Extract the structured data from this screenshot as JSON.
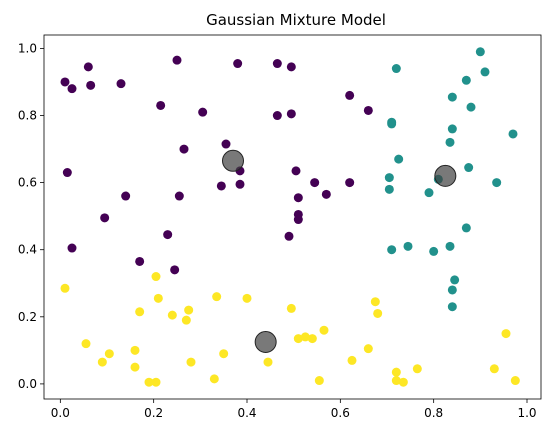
{
  "chart_data": {
    "type": "scatter",
    "title": "Gaussian Mixture Model",
    "xlabel": "",
    "ylabel": "",
    "xlim": [
      -0.035,
      1.03
    ],
    "ylim": [
      -0.045,
      1.04
    ],
    "xticks": [
      "0.0",
      "0.2",
      "0.4",
      "0.6",
      "0.8",
      "1.0"
    ],
    "yticks": [
      "0.0",
      "0.2",
      "0.4",
      "0.6",
      "0.8",
      "1.0"
    ],
    "grid": false,
    "legend": "none",
    "colors": {
      "cluster_purple": "#440154",
      "cluster_teal": "#21918c",
      "cluster_yellow": "#fde725",
      "centers": "#404040"
    },
    "series": [
      {
        "color_key": "cluster_purple",
        "points": [
          [
            0.01,
            0.9
          ],
          [
            0.025,
            0.88
          ],
          [
            0.06,
            0.945
          ],
          [
            0.065,
            0.89
          ],
          [
            0.13,
            0.895
          ],
          [
            0.25,
            0.965
          ],
          [
            0.38,
            0.955
          ],
          [
            0.465,
            0.955
          ],
          [
            0.495,
            0.945
          ],
          [
            0.215,
            0.83
          ],
          [
            0.305,
            0.81
          ],
          [
            0.465,
            0.8
          ],
          [
            0.495,
            0.805
          ],
          [
            0.62,
            0.86
          ],
          [
            0.66,
            0.815
          ],
          [
            0.265,
            0.7
          ],
          [
            0.355,
            0.715
          ],
          [
            0.385,
            0.635
          ],
          [
            0.345,
            0.59
          ],
          [
            0.385,
            0.595
          ],
          [
            0.015,
            0.63
          ],
          [
            0.14,
            0.56
          ],
          [
            0.255,
            0.56
          ],
          [
            0.505,
            0.635
          ],
          [
            0.51,
            0.555
          ],
          [
            0.545,
            0.6
          ],
          [
            0.57,
            0.565
          ],
          [
            0.62,
            0.6
          ],
          [
            0.095,
            0.495
          ],
          [
            0.51,
            0.505
          ],
          [
            0.51,
            0.49
          ],
          [
            0.49,
            0.44
          ],
          [
            0.025,
            0.405
          ],
          [
            0.23,
            0.445
          ],
          [
            0.245,
            0.34
          ],
          [
            0.17,
            0.365
          ]
        ]
      },
      {
        "color_key": "cluster_teal",
        "points": [
          [
            0.72,
            0.94
          ],
          [
            0.9,
            0.99
          ],
          [
            0.91,
            0.93
          ],
          [
            0.87,
            0.905
          ],
          [
            0.84,
            0.855
          ],
          [
            0.88,
            0.825
          ],
          [
            0.71,
            0.775
          ],
          [
            0.71,
            0.78
          ],
          [
            0.84,
            0.76
          ],
          [
            0.97,
            0.745
          ],
          [
            0.835,
            0.72
          ],
          [
            0.725,
            0.67
          ],
          [
            0.875,
            0.645
          ],
          [
            0.705,
            0.615
          ],
          [
            0.935,
            0.6
          ],
          [
            0.705,
            0.58
          ],
          [
            0.79,
            0.57
          ],
          [
            0.81,
            0.61
          ],
          [
            0.87,
            0.465
          ],
          [
            0.835,
            0.41
          ],
          [
            0.71,
            0.4
          ],
          [
            0.745,
            0.41
          ],
          [
            0.8,
            0.395
          ],
          [
            0.845,
            0.31
          ],
          [
            0.84,
            0.28
          ],
          [
            0.84,
            0.23
          ]
        ]
      },
      {
        "color_key": "cluster_yellow",
        "points": [
          [
            0.01,
            0.285
          ],
          [
            0.205,
            0.32
          ],
          [
            0.21,
            0.255
          ],
          [
            0.335,
            0.26
          ],
          [
            0.4,
            0.255
          ],
          [
            0.17,
            0.215
          ],
          [
            0.24,
            0.205
          ],
          [
            0.275,
            0.22
          ],
          [
            0.27,
            0.19
          ],
          [
            0.055,
            0.12
          ],
          [
            0.105,
            0.09
          ],
          [
            0.09,
            0.065
          ],
          [
            0.16,
            0.1
          ],
          [
            0.16,
            0.05
          ],
          [
            0.19,
            0.005
          ],
          [
            0.205,
            0.005
          ],
          [
            0.28,
            0.065
          ],
          [
            0.33,
            0.015
          ],
          [
            0.35,
            0.09
          ],
          [
            0.445,
            0.065
          ],
          [
            0.495,
            0.225
          ],
          [
            0.51,
            0.135
          ],
          [
            0.525,
            0.14
          ],
          [
            0.54,
            0.135
          ],
          [
            0.565,
            0.16
          ],
          [
            0.555,
            0.01
          ],
          [
            0.625,
            0.07
          ],
          [
            0.66,
            0.105
          ],
          [
            0.675,
            0.245
          ],
          [
            0.68,
            0.21
          ],
          [
            0.72,
            0.035
          ],
          [
            0.72,
            0.01
          ],
          [
            0.735,
            0.005
          ],
          [
            0.765,
            0.045
          ],
          [
            0.93,
            0.045
          ],
          [
            0.955,
            0.15
          ],
          [
            0.975,
            0.01
          ]
        ]
      },
      {
        "color_key": "centers",
        "points": [
          [
            0.37,
            0.665
          ],
          [
            0.44,
            0.125
          ],
          [
            0.825,
            0.62
          ]
        ]
      }
    ]
  }
}
